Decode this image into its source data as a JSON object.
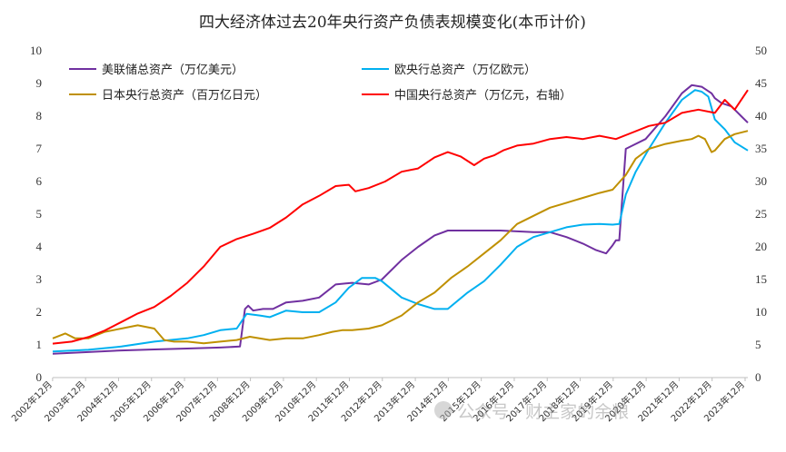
{
  "chart_data": {
    "type": "line",
    "title": "四大经济体过去20年央行资产负债表规模变化(本币计价)",
    "left_axis": {
      "ylim": [
        0,
        10
      ],
      "ticks": [
        "0",
        "1",
        "2",
        "3",
        "4",
        "5",
        "6",
        "7",
        "8",
        "9",
        "10"
      ]
    },
    "right_axis": {
      "ylim": [
        0,
        50
      ],
      "ticks": [
        "0",
        "5",
        "10",
        "15",
        "20",
        "25",
        "30",
        "35",
        "40",
        "45",
        "50"
      ]
    },
    "x_ticks": [
      "2002年12月",
      "2003年12月",
      "2004年12月",
      "2005年12月",
      "2006年12月",
      "2007年12月",
      "2008年12月",
      "2009年12月",
      "2010年12月",
      "2011年12月",
      "2012年12月",
      "2013年12月",
      "2014年12月",
      "2015年12月",
      "2016年12月",
      "2017年12月",
      "2018年12月",
      "2019年12月",
      "2020年12月",
      "2021年12月",
      "2022年12月",
      "2023年12月"
    ],
    "x_range": [
      2002.92,
      2024.0
    ],
    "legend": {
      "placement": "top-left",
      "columns": 2
    },
    "series": [
      {
        "name": "美联储总资产（万亿美元）",
        "color": "#7030A0",
        "axis": "left",
        "x": [
          2002.92,
          2004.0,
          2005.0,
          2006.0,
          2007.0,
          2008.0,
          2008.6,
          2008.75,
          2008.85,
          2009.0,
          2009.3,
          2009.6,
          2010.0,
          2010.5,
          2011.0,
          2011.5,
          2012.0,
          2012.5,
          2012.9,
          2013.5,
          2014.0,
          2014.5,
          2014.9,
          2015.5,
          2016.5,
          2017.5,
          2018.0,
          2018.5,
          2019.0,
          2019.4,
          2019.7,
          2019.9,
          2020.0,
          2020.1,
          2020.3,
          2020.5,
          2020.9,
          2021.5,
          2022.0,
          2022.3,
          2022.6,
          2022.9,
          2023.0,
          2023.2,
          2023.5,
          2023.8,
          2024.0
        ],
        "y": [
          0.73,
          0.78,
          0.83,
          0.86,
          0.89,
          0.92,
          0.95,
          2.1,
          2.2,
          2.05,
          2.1,
          2.1,
          2.3,
          2.35,
          2.45,
          2.85,
          2.9,
          2.85,
          3.0,
          3.6,
          4.0,
          4.35,
          4.5,
          4.5,
          4.5,
          4.45,
          4.45,
          4.3,
          4.1,
          3.9,
          3.8,
          4.05,
          4.2,
          4.2,
          7.0,
          7.1,
          7.3,
          8.0,
          8.7,
          8.95,
          8.9,
          8.7,
          8.55,
          8.4,
          8.3,
          8.0,
          7.8
        ]
      },
      {
        "name": "欧央行总资产（万亿欧元）",
        "color": "#00B0F0",
        "axis": "left",
        "x": [
          2002.92,
          2004.0,
          2005.0,
          2006.0,
          2007.0,
          2007.5,
          2008.0,
          2008.5,
          2008.8,
          2009.2,
          2009.5,
          2010.0,
          2010.5,
          2011.0,
          2011.5,
          2011.9,
          2012.3,
          2012.7,
          2012.9,
          2013.5,
          2014.0,
          2014.5,
          2014.9,
          2015.5,
          2016.0,
          2016.5,
          2017.0,
          2017.5,
          2018.0,
          2018.5,
          2019.0,
          2019.5,
          2019.9,
          2020.1,
          2020.3,
          2020.6,
          2021.0,
          2021.5,
          2022.0,
          2022.4,
          2022.6,
          2022.8,
          2023.0,
          2023.3,
          2023.6,
          2024.0
        ],
        "y": [
          0.8,
          0.85,
          0.95,
          1.1,
          1.2,
          1.3,
          1.45,
          1.5,
          1.95,
          1.9,
          1.85,
          2.05,
          2.0,
          2.0,
          2.3,
          2.75,
          3.05,
          3.05,
          2.95,
          2.45,
          2.25,
          2.1,
          2.1,
          2.6,
          2.95,
          3.45,
          4.0,
          4.3,
          4.45,
          4.6,
          4.68,
          4.7,
          4.68,
          4.7,
          5.6,
          6.3,
          7.0,
          7.8,
          8.5,
          8.8,
          8.75,
          8.6,
          7.9,
          7.6,
          7.2,
          6.95
        ]
      },
      {
        "name": "日本央行总资产（百万亿日元）",
        "color": "#BF9000",
        "axis": "left",
        "x": [
          2002.92,
          2003.3,
          2003.6,
          2004.0,
          2004.5,
          2005.0,
          2005.5,
          2006.0,
          2006.3,
          2006.6,
          2007.0,
          2007.5,
          2008.0,
          2008.5,
          2008.9,
          2009.5,
          2010.0,
          2010.5,
          2011.0,
          2011.4,
          2011.7,
          2012.0,
          2012.5,
          2012.9,
          2013.5,
          2014.0,
          2014.5,
          2015.0,
          2015.5,
          2016.0,
          2016.5,
          2017.0,
          2017.5,
          2018.0,
          2018.5,
          2019.0,
          2019.5,
          2019.9,
          2020.3,
          2020.6,
          2021.0,
          2021.5,
          2022.0,
          2022.3,
          2022.5,
          2022.7,
          2022.9,
          2023.0,
          2023.3,
          2023.6,
          2024.0
        ],
        "y": [
          1.2,
          1.35,
          1.2,
          1.2,
          1.4,
          1.5,
          1.6,
          1.5,
          1.15,
          1.1,
          1.1,
          1.05,
          1.1,
          1.15,
          1.25,
          1.15,
          1.2,
          1.2,
          1.3,
          1.4,
          1.45,
          1.45,
          1.5,
          1.6,
          1.9,
          2.3,
          2.6,
          3.05,
          3.4,
          3.8,
          4.2,
          4.7,
          4.95,
          5.2,
          5.35,
          5.5,
          5.65,
          5.75,
          6.2,
          6.7,
          7.0,
          7.15,
          7.25,
          7.3,
          7.4,
          7.3,
          6.9,
          6.95,
          7.3,
          7.45,
          7.55
        ]
      },
      {
        "name": "中国央行总资产（万亿元，右轴）",
        "color": "#FF0000",
        "axis": "right",
        "x": [
          2002.92,
          2003.5,
          2004.0,
          2004.5,
          2005.0,
          2005.5,
          2006.0,
          2006.5,
          2007.0,
          2007.5,
          2008.0,
          2008.5,
          2009.0,
          2009.5,
          2010.0,
          2010.5,
          2011.0,
          2011.5,
          2011.9,
          2012.1,
          2012.5,
          2013.0,
          2013.5,
          2014.0,
          2014.5,
          2014.9,
          2015.3,
          2015.7,
          2016.0,
          2016.3,
          2016.6,
          2017.0,
          2017.5,
          2018.0,
          2018.5,
          2019.0,
          2019.5,
          2020.0,
          2020.5,
          2021.0,
          2021.5,
          2022.0,
          2022.5,
          2023.0,
          2023.3,
          2023.6,
          2024.0
        ],
        "y": [
          5.2,
          5.5,
          6.2,
          7.2,
          8.5,
          9.8,
          10.8,
          12.5,
          14.5,
          17.0,
          20.0,
          21.2,
          22.0,
          22.9,
          24.5,
          26.5,
          27.8,
          29.3,
          29.5,
          28.5,
          29.0,
          30.0,
          31.5,
          32.0,
          33.7,
          34.5,
          33.8,
          32.5,
          33.5,
          34.0,
          34.8,
          35.5,
          35.8,
          36.5,
          36.8,
          36.5,
          37.0,
          36.5,
          37.5,
          38.5,
          39.0,
          40.5,
          41.0,
          40.5,
          42.5,
          41.0,
          44.0
        ]
      }
    ],
    "watermark": "公众号 · 财主家的余粮"
  }
}
